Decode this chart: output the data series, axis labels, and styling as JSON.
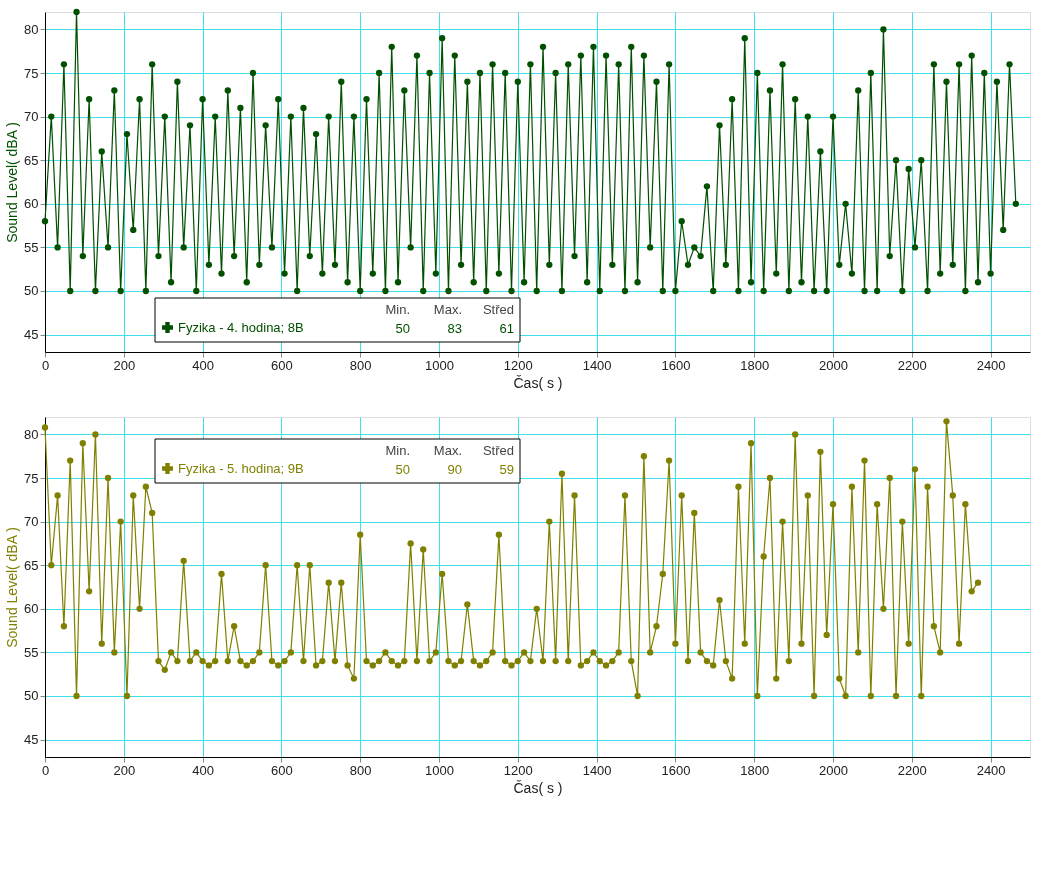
{
  "chart_data": [
    {
      "type": "line",
      "xlabel": "Čas( s )",
      "ylabel": "Sound Level( dBA )",
      "xlim": [
        0,
        2500
      ],
      "ylim": [
        43,
        82
      ],
      "xticks": [
        0,
        200,
        400,
        600,
        800,
        1000,
        1200,
        1400,
        1600,
        1800,
        2000,
        2200,
        2400
      ],
      "yticks": [
        45,
        50,
        55,
        60,
        65,
        70,
        75,
        80
      ],
      "grid": true,
      "marker": "circle",
      "line_style": "solid",
      "legend": "bottom left",
      "annotations": [
        "Min.",
        "Max.",
        "Střed",
        "50",
        "83",
        "61"
      ],
      "series": [
        {
          "name": "Fyzika - 4. hodina; 8B",
          "color": "#005000",
          "x": [
            0,
            16,
            32,
            48,
            64,
            80,
            96,
            112,
            128,
            144,
            160,
            176,
            192,
            208,
            224,
            240,
            256,
            272,
            288,
            304,
            320,
            336,
            352,
            368,
            384,
            400,
            416,
            432,
            448,
            464,
            480,
            496,
            512,
            528,
            544,
            560,
            576,
            592,
            608,
            624,
            640,
            656,
            672,
            688,
            704,
            720,
            736,
            752,
            768,
            784,
            800,
            816,
            832,
            848,
            864,
            880,
            896,
            912,
            928,
            944,
            960,
            976,
            992,
            1008,
            1024,
            1040,
            1056,
            1072,
            1088,
            1104,
            1120,
            1136,
            1152,
            1168,
            1184,
            1200,
            1216,
            1232,
            1248,
            1264,
            1280,
            1296,
            1312,
            1328,
            1344,
            1360,
            1376,
            1392,
            1408,
            1424,
            1440,
            1456,
            1472,
            1488,
            1504,
            1520,
            1536,
            1552,
            1568,
            1584,
            1600,
            1616,
            1632,
            1648,
            1664,
            1680,
            1696,
            1712,
            1728,
            1744,
            1760,
            1776,
            1792,
            1808,
            1824,
            1840,
            1856,
            1872,
            1888,
            1904,
            1920,
            1936,
            1952,
            1968,
            1984,
            2000,
            2016,
            2032,
            2048,
            2064,
            2080,
            2096,
            2112,
            2128,
            2144,
            2160,
            2176,
            2192,
            2208,
            2224,
            2240,
            2256,
            2272,
            2288,
            2304,
            2320,
            2336,
            2352,
            2368,
            2384,
            2400,
            2416,
            2432,
            2448,
            2464
          ],
          "values": [
            58,
            70,
            55,
            76,
            50,
            82,
            54,
            72,
            50,
            66,
            55,
            73,
            50,
            68,
            57,
            72,
            50,
            76,
            54,
            70,
            51,
            74,
            55,
            69,
            50,
            72,
            53,
            70,
            52,
            73,
            54,
            71,
            51,
            75,
            53,
            69,
            55,
            72,
            52,
            70,
            50,
            71,
            54,
            68,
            52,
            70,
            53,
            74,
            51,
            70,
            50,
            72,
            52,
            75,
            50,
            78,
            51,
            73,
            55,
            77,
            50,
            75,
            52,
            79,
            50,
            77,
            53,
            74,
            51,
            75,
            50,
            76,
            52,
            75,
            50,
            74,
            51,
            76,
            50,
            78,
            53,
            75,
            50,
            76,
            54,
            77,
            51,
            78,
            50,
            77,
            53,
            76,
            50,
            78,
            51,
            77,
            55,
            74,
            50,
            76,
            50,
            58,
            53,
            55,
            54,
            62,
            50,
            69,
            53,
            72,
            50,
            79,
            51,
            75,
            50,
            73,
            52,
            76,
            50,
            72,
            51,
            70,
            50,
            66,
            50,
            70,
            53,
            60,
            52,
            73,
            50,
            75,
            50,
            80,
            54,
            65,
            50,
            64,
            55,
            65,
            50,
            76,
            52,
            74,
            53,
            76,
            50,
            77,
            51,
            75,
            52,
            74,
            57,
            76,
            60
          ]
        }
      ]
    },
    {
      "type": "line",
      "xlabel": "Čas( s )",
      "ylabel": "Sound Level( dBA )",
      "xlim": [
        0,
        2500
      ],
      "ylim": [
        43,
        82
      ],
      "xticks": [
        0,
        200,
        400,
        600,
        800,
        1000,
        1200,
        1400,
        1600,
        1800,
        2000,
        2200,
        2400
      ],
      "yticks": [
        45,
        50,
        55,
        60,
        65,
        70,
        75,
        80
      ],
      "grid": true,
      "marker": "circle",
      "line_style": "solid",
      "legend": "top left",
      "annotations": [
        "Min.",
        "Max.",
        "Střed",
        "50",
        "90",
        "59"
      ],
      "series": [
        {
          "name": "Fyzika - 5. hodina; 9B",
          "color": "#808000",
          "x": [
            0,
            16,
            32,
            48,
            64,
            80,
            96,
            112,
            128,
            144,
            160,
            176,
            192,
            208,
            224,
            240,
            256,
            272,
            288,
            304,
            320,
            336,
            352,
            368,
            384,
            400,
            416,
            432,
            448,
            464,
            480,
            496,
            512,
            528,
            544,
            560,
            576,
            592,
            608,
            624,
            640,
            656,
            672,
            688,
            704,
            720,
            736,
            752,
            768,
            784,
            800,
            816,
            832,
            848,
            864,
            880,
            896,
            912,
            928,
            944,
            960,
            976,
            992,
            1008,
            1024,
            1040,
            1056,
            1072,
            1088,
            1104,
            1120,
            1136,
            1152,
            1168,
            1184,
            1200,
            1216,
            1232,
            1248,
            1264,
            1280,
            1296,
            1312,
            1328,
            1344,
            1360,
            1376,
            1392,
            1408,
            1424,
            1440,
            1456,
            1472,
            1488,
            1504,
            1520,
            1536,
            1552,
            1568,
            1584,
            1600,
            1616,
            1632,
            1648,
            1664,
            1680,
            1696,
            1712,
            1728,
            1744,
            1760,
            1776,
            1792,
            1808,
            1824,
            1840,
            1856,
            1872,
            1888,
            1904,
            1920,
            1936,
            1952,
            1968,
            1984,
            2000,
            2016,
            2032,
            2048,
            2064,
            2080,
            2096,
            2112,
            2128,
            2144,
            2160,
            2176,
            2192,
            2208,
            2224,
            2240,
            2256,
            2272,
            2288,
            2304,
            2320,
            2336,
            2352,
            2368
          ],
          "values": [
            80.8,
            65,
            73,
            58,
            77,
            50,
            79,
            62,
            80,
            56,
            75,
            55,
            70,
            50,
            73,
            60,
            74,
            71,
            54,
            53,
            55,
            54,
            65.5,
            54,
            55,
            54,
            53.5,
            54,
            64,
            54,
            58,
            54,
            53.5,
            54,
            55,
            65,
            54,
            53.5,
            54,
            55,
            65,
            54,
            65,
            53.5,
            54,
            63,
            54,
            63,
            53.5,
            52,
            68.5,
            54,
            53.5,
            54,
            55,
            54,
            53.5,
            54,
            67.5,
            54,
            66.8,
            54,
            55,
            64,
            54,
            53.5,
            54,
            60.5,
            54,
            53.5,
            54,
            55,
            68.5,
            54,
            53.5,
            54,
            55,
            54,
            60,
            54,
            70,
            54,
            75.5,
            54,
            73,
            53.5,
            54,
            55,
            54,
            53.5,
            54,
            55,
            73,
            54,
            50,
            77.5,
            55,
            58,
            64,
            77,
            56,
            73,
            54,
            71,
            55,
            54,
            53.5,
            61,
            54,
            52,
            74,
            56,
            79,
            50,
            66,
            75,
            52,
            70,
            54,
            80,
            56,
            73,
            50,
            78,
            57,
            72,
            52,
            50,
            74,
            55,
            77,
            50,
            72,
            60,
            75,
            50,
            70,
            56,
            76,
            50,
            74,
            58,
            55,
            81.5,
            73,
            56,
            72,
            62,
            63
          ]
        }
      ]
    }
  ]
}
